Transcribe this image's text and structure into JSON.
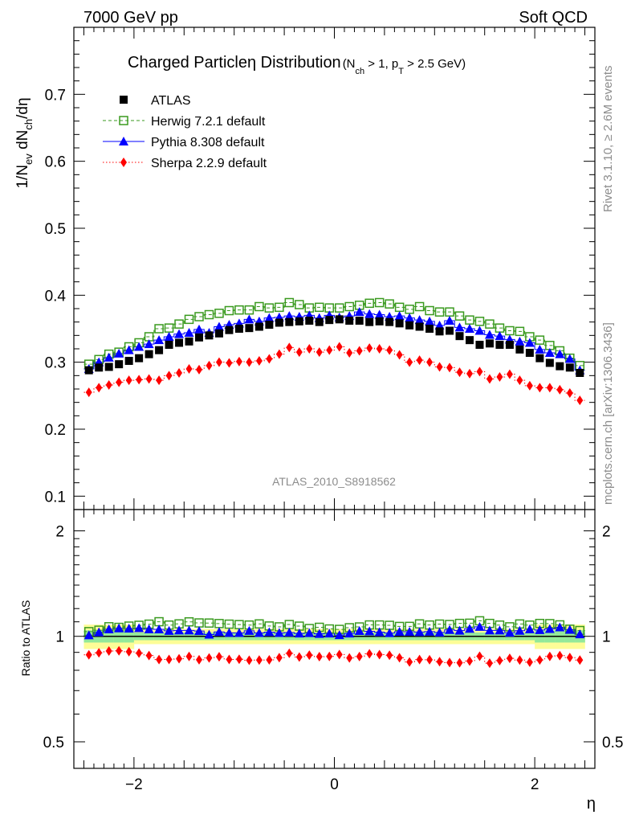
{
  "header": {
    "left": "7000 GeV pp",
    "right": "Soft QCD"
  },
  "side": {
    "rivet": "Rivet 3.1.10, ≥ 2.6M events",
    "mcplots": "mcplots.cern.ch [arXiv:1306.3436]"
  },
  "chart_data": [
    {
      "type": "scatter",
      "title_main": "Charged Particleη Distribution",
      "title_sub": "(N",
      "title_sub_ch": "ch",
      "title_sub_mid": " > 1, p",
      "title_sub_T": "T",
      "title_sub_end": " > 2.5 GeV)",
      "ylabel_parts": [
        "1/N",
        "ev",
        " dN",
        "ch",
        "/dη"
      ],
      "watermark": "ATLAS_2010_S8918562",
      "xlim": [
        -2.6,
        2.6
      ],
      "ylim": [
        0.08,
        0.8
      ],
      "yticks": [
        0.1,
        0.2,
        0.3,
        0.4,
        0.5,
        0.6,
        0.7
      ],
      "ytick_labels": [
        "0.1",
        "0.2",
        "0.3",
        "0.4",
        "0.5",
        "0.6",
        "0.7"
      ],
      "x": [
        -2.45,
        -2.35,
        -2.25,
        -2.15,
        -2.05,
        -1.95,
        -1.85,
        -1.75,
        -1.65,
        -1.55,
        -1.45,
        -1.35,
        -1.25,
        -1.15,
        -1.05,
        -0.95,
        -0.85,
        -0.75,
        -0.65,
        -0.55,
        -0.45,
        -0.35,
        -0.25,
        -0.15,
        -0.05,
        0.05,
        0.15,
        0.25,
        0.35,
        0.45,
        0.55,
        0.65,
        0.75,
        0.85,
        0.95,
        1.05,
        1.15,
        1.25,
        1.35,
        1.45,
        1.55,
        1.65,
        1.75,
        1.85,
        1.95,
        2.05,
        2.15,
        2.25,
        2.35,
        2.45
      ],
      "series": [
        {
          "name": "ATLAS",
          "color": "#000000",
          "marker": "square-filled",
          "values": [
            0.288,
            0.292,
            0.293,
            0.297,
            0.302,
            0.306,
            0.312,
            0.318,
            0.326,
            0.329,
            0.331,
            0.337,
            0.34,
            0.343,
            0.348,
            0.35,
            0.351,
            0.353,
            0.356,
            0.359,
            0.36,
            0.361,
            0.362,
            0.36,
            0.363,
            0.364,
            0.362,
            0.362,
            0.36,
            0.361,
            0.36,
            0.358,
            0.355,
            0.353,
            0.35,
            0.346,
            0.347,
            0.339,
            0.333,
            0.326,
            0.328,
            0.326,
            0.326,
            0.319,
            0.314,
            0.306,
            0.299,
            0.294,
            0.292,
            0.284
          ]
        },
        {
          "name": "Herwig 7.2.1 default",
          "color": "#3a9a1f",
          "marker": "square-open",
          "values": [
            0.297,
            0.304,
            0.312,
            0.315,
            0.323,
            0.329,
            0.338,
            0.35,
            0.351,
            0.357,
            0.364,
            0.368,
            0.371,
            0.373,
            0.377,
            0.378,
            0.378,
            0.383,
            0.381,
            0.382,
            0.389,
            0.386,
            0.381,
            0.382,
            0.381,
            0.381,
            0.383,
            0.385,
            0.388,
            0.389,
            0.387,
            0.382,
            0.379,
            0.383,
            0.377,
            0.375,
            0.375,
            0.369,
            0.363,
            0.361,
            0.357,
            0.351,
            0.347,
            0.346,
            0.338,
            0.333,
            0.325,
            0.317,
            0.306,
            0.295
          ]
        },
        {
          "name": "Pythia 8.308 default",
          "color": "#0000ff",
          "marker": "triangle",
          "values": [
            0.29,
            0.3,
            0.307,
            0.313,
            0.318,
            0.323,
            0.327,
            0.333,
            0.338,
            0.342,
            0.344,
            0.349,
            0.344,
            0.353,
            0.356,
            0.358,
            0.364,
            0.361,
            0.366,
            0.367,
            0.369,
            0.368,
            0.37,
            0.366,
            0.37,
            0.367,
            0.369,
            0.375,
            0.372,
            0.371,
            0.368,
            0.369,
            0.366,
            0.363,
            0.361,
            0.355,
            0.362,
            0.352,
            0.35,
            0.347,
            0.341,
            0.339,
            0.334,
            0.331,
            0.329,
            0.319,
            0.314,
            0.312,
            0.305,
            0.288
          ]
        },
        {
          "name": "Sherpa 2.2.9 default",
          "color": "#ff0000",
          "marker": "diamond",
          "values": [
            0.255,
            0.262,
            0.266,
            0.27,
            0.273,
            0.274,
            0.275,
            0.273,
            0.28,
            0.284,
            0.29,
            0.289,
            0.295,
            0.3,
            0.299,
            0.301,
            0.3,
            0.302,
            0.305,
            0.312,
            0.322,
            0.315,
            0.32,
            0.315,
            0.318,
            0.323,
            0.314,
            0.317,
            0.321,
            0.32,
            0.318,
            0.311,
            0.3,
            0.303,
            0.3,
            0.293,
            0.292,
            0.285,
            0.283,
            0.286,
            0.275,
            0.278,
            0.282,
            0.273,
            0.265,
            0.262,
            0.262,
            0.259,
            0.254,
            0.243
          ]
        }
      ]
    },
    {
      "type": "scatter",
      "ylabel": "Ratio to ATLAS",
      "xlabel": "η",
      "xlim": [
        -2.6,
        2.6
      ],
      "ylim": [
        0.42,
        2.3
      ],
      "log_y": true,
      "yticks": [
        0.5,
        1,
        2
      ],
      "ytick_labels": [
        "0.5",
        "1",
        "2"
      ],
      "xticks": [
        -2,
        0,
        2
      ],
      "xtick_labels": [
        "−2",
        "0",
        "2"
      ]
    }
  ]
}
